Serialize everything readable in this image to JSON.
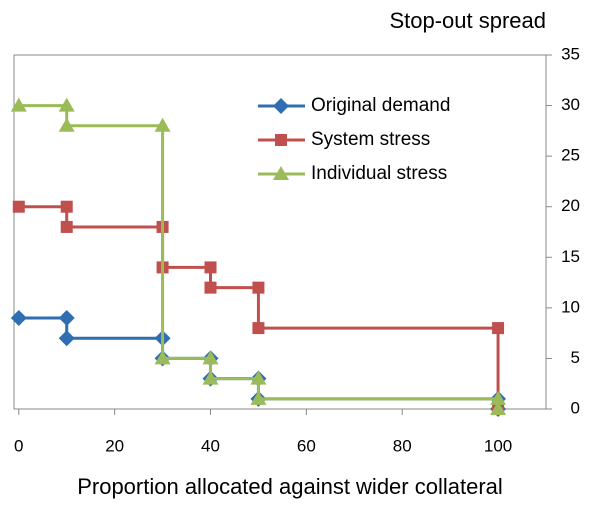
{
  "chart_data": {
    "type": "line",
    "y_label": "Stop-out spread",
    "x_label": "Proportion allocated against wider collateral",
    "x": [
      0,
      10,
      10,
      30,
      30,
      40,
      40,
      50,
      50,
      100,
      100
    ],
    "series": [
      {
        "name": "Original demand",
        "color": "#2f6eb0",
        "marker": "diamond",
        "values": [
          9,
          9,
          7,
          7,
          5,
          5,
          3,
          3,
          1,
          1,
          0
        ]
      },
      {
        "name": "System stress",
        "color": "#c0504d",
        "marker": "square",
        "values": [
          20,
          20,
          18,
          18,
          14,
          14,
          12,
          12,
          8,
          8,
          0
        ]
      },
      {
        "name": "Individual stress",
        "color": "#9bbb59",
        "marker": "triangle",
        "values": [
          30,
          30,
          28,
          28,
          5,
          5,
          3,
          3,
          1,
          1,
          0
        ]
      }
    ],
    "xlim": [
      -1,
      110
    ],
    "xticks": [
      0,
      20,
      40,
      60,
      80,
      100
    ],
    "ylim": [
      0,
      35
    ],
    "yticks": [
      0,
      5,
      10,
      15,
      20,
      25,
      30,
      35
    ],
    "y_axis_side": "right",
    "grid": false,
    "legend": "upper right"
  }
}
